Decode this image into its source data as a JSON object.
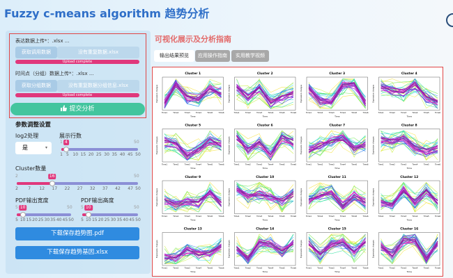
{
  "header": {
    "title": "Fuzzy c-means algorithm 趋势分析"
  },
  "sidebar": {
    "uploads": [
      {
        "label": "表达数据上传*：.xlsx ...",
        "button": "获取调用数据",
        "file": "没有重复数据.xlsx",
        "status": "Upload complete"
      },
      {
        "label": "时间点（分组）数据上传*：.xlsx ...",
        "button": "获取分组数据",
        "file": "没有重复数据分组信息.xlsx",
        "status": "Upload complete"
      }
    ],
    "submit": "提交分析",
    "params_title": "参数调整设置",
    "log2": {
      "label": "log2处理",
      "value": "是"
    },
    "sliders": [
      {
        "label": "展示行数",
        "value": 4,
        "min": 1,
        "max": 50,
        "ticks": [
          1,
          5,
          10,
          15,
          20,
          25,
          30,
          35,
          40,
          45,
          50
        ]
      },
      {
        "label": "Cluster数量",
        "value": 16,
        "min": 2,
        "max": 50,
        "ticks": [
          2,
          7,
          12,
          17,
          22,
          27,
          32,
          37,
          42,
          47,
          50
        ]
      },
      {
        "label": "PDF输出宽度",
        "value": 10,
        "min": 5,
        "max": 50,
        "ticks": [
          5,
          10,
          15,
          20,
          25,
          30,
          35,
          40,
          45,
          50
        ]
      },
      {
        "label": "PDF输出高度",
        "value": 10,
        "min": 5,
        "max": 50,
        "ticks": [
          5,
          10,
          15,
          20,
          25,
          30,
          35,
          40,
          45,
          50
        ]
      }
    ],
    "downloads": [
      "下载保存趋势图.pdf",
      "下载保存趋势基因.xlsx"
    ]
  },
  "main": {
    "heading": "可视化展示及分析指南",
    "tabs": [
      "输出结果预览",
      "应用操作指南",
      "实用教学视频"
    ],
    "plots": {
      "x_label": "Time",
      "y_label": "Expression changes",
      "x_ticks": [
        "Time1",
        "Time2",
        "Time3",
        "Time4",
        "Time5",
        "Time6"
      ],
      "titles": [
        "Cluster 1",
        "Cluster 2",
        "Cluster 3",
        "Cluster 4",
        "Cluster 5",
        "Cluster 6",
        "Cluster 7",
        "Cluster 8",
        "Cluster 9",
        "Cluster 10",
        "Cluster 11",
        "Cluster 12",
        "Cluster 13",
        "Cluster 14",
        "Cluster 15",
        "Cluster 16"
      ]
    }
  }
}
